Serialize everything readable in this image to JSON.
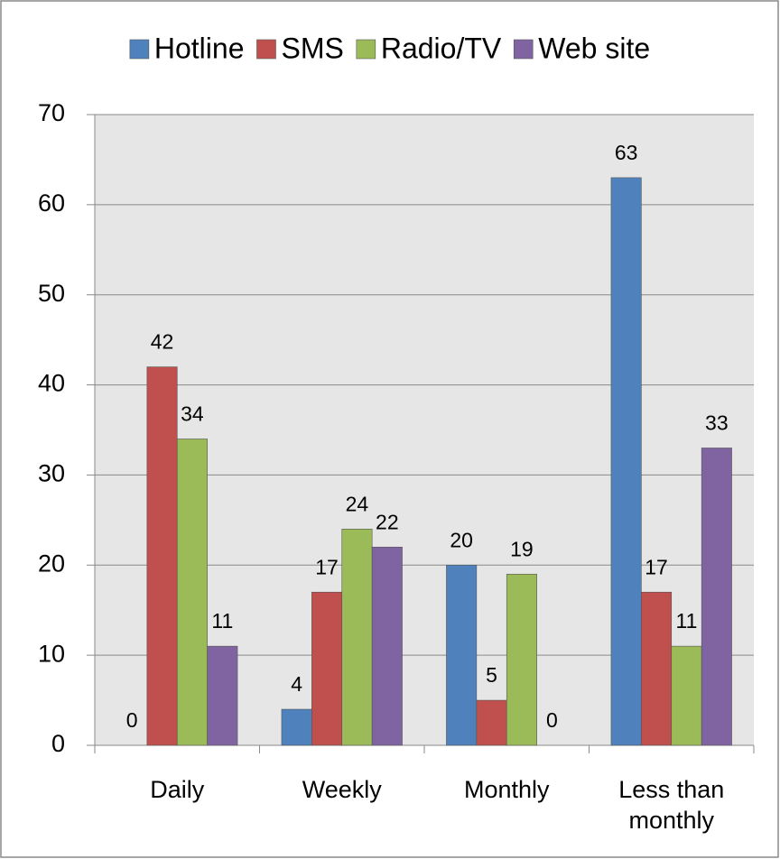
{
  "chart_data": {
    "type": "bar",
    "categories": [
      "Daily",
      "Weekly",
      "Monthly",
      "Less than monthly"
    ],
    "series": [
      {
        "name": "Hotline",
        "color": "#4f81bd",
        "values": [
          0,
          4,
          20,
          63
        ]
      },
      {
        "name": "SMS",
        "color": "#c0504d",
        "values": [
          42,
          17,
          5,
          17
        ]
      },
      {
        "name": "Radio/TV",
        "color": "#9bbb59",
        "values": [
          34,
          24,
          19,
          11
        ]
      },
      {
        "name": "Web site",
        "color": "#8064a2",
        "values": [
          11,
          22,
          0,
          33
        ]
      }
    ],
    "ylim": [
      0,
      70
    ],
    "yticks": [
      0,
      10,
      20,
      30,
      40,
      50,
      60,
      70
    ],
    "grid": true,
    "legend": "top"
  }
}
